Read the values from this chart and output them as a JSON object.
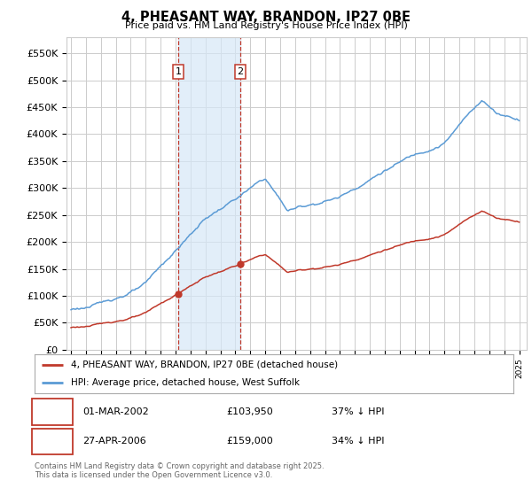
{
  "title": "4, PHEASANT WAY, BRANDON, IP27 0BE",
  "subtitle": "Price paid vs. HM Land Registry's House Price Index (HPI)",
  "ylabel_ticks": [
    "£0",
    "£50K",
    "£100K",
    "£150K",
    "£200K",
    "£250K",
    "£300K",
    "£350K",
    "£400K",
    "£450K",
    "£500K",
    "£550K"
  ],
  "ytick_vals": [
    0,
    50000,
    100000,
    150000,
    200000,
    250000,
    300000,
    350000,
    400000,
    450000,
    500000,
    550000
  ],
  "ylim": [
    0,
    580000
  ],
  "xlim_start": 1994.7,
  "xlim_end": 2025.5,
  "hpi_color": "#5b9bd5",
  "price_color": "#c0392b",
  "sale1_x": 2002.17,
  "sale1_y": 103950,
  "sale2_x": 2006.33,
  "sale2_y": 159000,
  "vline_color": "#c0392b",
  "shade_color": "#d6e8f7",
  "legend_label_red": "4, PHEASANT WAY, BRANDON, IP27 0BE (detached house)",
  "legend_label_blue": "HPI: Average price, detached house, West Suffolk",
  "table_row1": [
    "1",
    "01-MAR-2002",
    "£103,950",
    "37% ↓ HPI"
  ],
  "table_row2": [
    "2",
    "27-APR-2006",
    "£159,000",
    "34% ↓ HPI"
  ],
  "footnote": "Contains HM Land Registry data © Crown copyright and database right 2025.\nThis data is licensed under the Open Government Licence v3.0.",
  "background_color": "#ffffff",
  "grid_color": "#cccccc"
}
